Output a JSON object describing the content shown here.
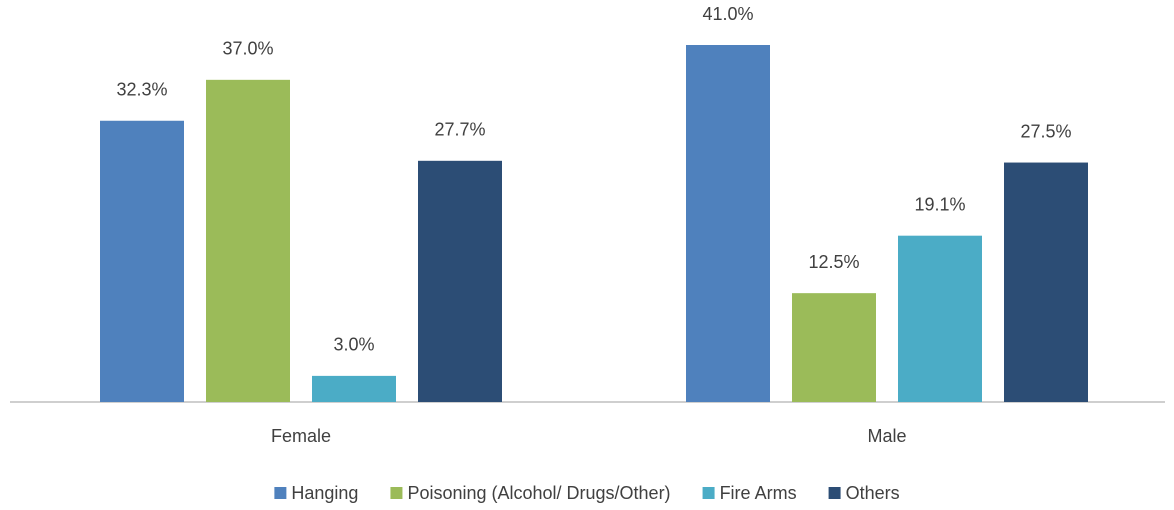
{
  "chart_data": {
    "type": "bar",
    "categories": [
      "Female",
      "Male"
    ],
    "series": [
      {
        "name": "Hanging",
        "color": "#4f81bd",
        "values": [
          32.3,
          41.0
        ],
        "value_labels": [
          "32.3%",
          "41.0%"
        ]
      },
      {
        "name": "Poisoning (Alcohol/ Drugs/Other)",
        "color": "#9bbb59",
        "values": [
          37.0,
          12.5
        ],
        "value_labels": [
          "37.0%",
          "12.5%"
        ]
      },
      {
        "name": "Fire Arms",
        "color": "#4bacc6",
        "values": [
          3.0,
          19.1
        ],
        "value_labels": [
          "3.0%",
          "19.1%"
        ]
      },
      {
        "name": "Others",
        "color": "#2c4d75",
        "values": [
          27.7,
          27.5
        ],
        "value_labels": [
          "27.7%",
          "27.5%"
        ]
      }
    ],
    "legend": "bottom"
  }
}
